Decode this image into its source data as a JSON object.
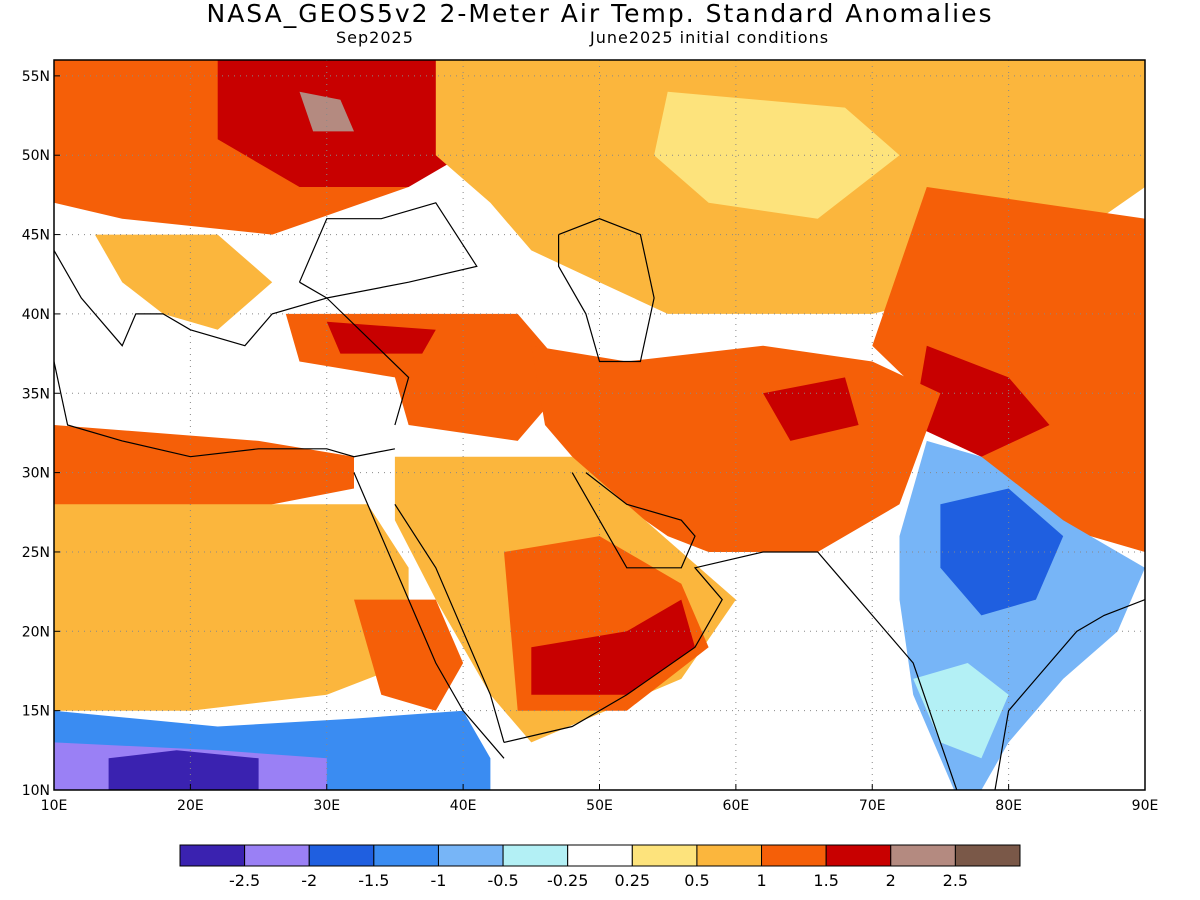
{
  "title": "NASA_GEOS5v2 2-Meter Air Temp. Standard Anomalies",
  "subtitle_left": "Sep2025",
  "subtitle_right": "June2025 initial conditions",
  "map": {
    "lon_range": [
      10,
      90
    ],
    "lat_range": [
      10,
      56
    ],
    "lon_ticks": [
      {
        "value": 10,
        "label": "10E"
      },
      {
        "value": 20,
        "label": "20E"
      },
      {
        "value": 30,
        "label": "30E"
      },
      {
        "value": 40,
        "label": "40E"
      },
      {
        "value": 50,
        "label": "50E"
      },
      {
        "value": 60,
        "label": "60E"
      },
      {
        "value": 70,
        "label": "70E"
      },
      {
        "value": 80,
        "label": "80E"
      },
      {
        "value": 90,
        "label": "90E"
      }
    ],
    "lat_ticks": [
      {
        "value": 10,
        "label": "10N"
      },
      {
        "value": 15,
        "label": "15N"
      },
      {
        "value": 20,
        "label": "20N"
      },
      {
        "value": 25,
        "label": "25N"
      },
      {
        "value": 30,
        "label": "30N"
      },
      {
        "value": 35,
        "label": "35N"
      },
      {
        "value": 40,
        "label": "40N"
      },
      {
        "value": 45,
        "label": "45N"
      },
      {
        "value": 50,
        "label": "50N"
      },
      {
        "value": 55,
        "label": "55N"
      }
    ],
    "gridlines": "dotted"
  },
  "colorbar": {
    "colors": [
      "#3a22b0",
      "#9a80f5",
      "#1f5fe0",
      "#3a8cf2",
      "#77b5f7",
      "#b3f0f5",
      "#ffffff",
      "#fde37c",
      "#fbb63d",
      "#f55f08",
      "#c80000",
      "#b48a80",
      "#7a5848"
    ],
    "labels": [
      "-2.5",
      "-2",
      "-1.5",
      "-1",
      "-0.5",
      "-0.25",
      "0.25",
      "0.5",
      "1",
      "1.5",
      "2",
      "2.5"
    ]
  },
  "regions": [
    {
      "name": "europe-north",
      "color": "#f55f08",
      "lonlat": [
        [
          10,
          56
        ],
        [
          30,
          56
        ],
        [
          36,
          48
        ],
        [
          26,
          45
        ],
        [
          15,
          46
        ],
        [
          10,
          47
        ]
      ]
    },
    {
      "name": "eastern-europe-core",
      "color": "#c80000",
      "lonlat": [
        [
          22,
          56
        ],
        [
          38,
          56
        ],
        [
          42,
          51
        ],
        [
          36,
          48
        ],
        [
          28,
          48
        ],
        [
          22,
          51
        ]
      ]
    },
    {
      "name": "eastern-europe-peak",
      "color": "#b48a80",
      "lonlat": [
        [
          28,
          54
        ],
        [
          31,
          53.5
        ],
        [
          32,
          51.5
        ],
        [
          29,
          51.5
        ]
      ]
    },
    {
      "name": "balkans",
      "color": "#fbb63d",
      "lonlat": [
        [
          13,
          45
        ],
        [
          22,
          45
        ],
        [
          26,
          42
        ],
        [
          22,
          39
        ],
        [
          18,
          40
        ],
        [
          15,
          42
        ]
      ]
    },
    {
      "name": "russia-central",
      "color": "#fbb63d",
      "lonlat": [
        [
          38,
          56
        ],
        [
          90,
          56
        ],
        [
          90,
          48
        ],
        [
          80,
          42
        ],
        [
          70,
          40
        ],
        [
          55,
          40
        ],
        [
          50,
          42
        ],
        [
          45,
          44
        ],
        [
          42,
          47
        ],
        [
          38,
          50
        ]
      ]
    },
    {
      "name": "kazakh-pale",
      "color": "#fde37c",
      "lonlat": [
        [
          55,
          54
        ],
        [
          68,
          53
        ],
        [
          72,
          50
        ],
        [
          66,
          46
        ],
        [
          58,
          47
        ],
        [
          54,
          50
        ]
      ]
    },
    {
      "name": "central-asia-east",
      "color": "#f55f08",
      "lonlat": [
        [
          74,
          48
        ],
        [
          90,
          46
        ],
        [
          90,
          25
        ],
        [
          82,
          27
        ],
        [
          76,
          33
        ],
        [
          70,
          38
        ]
      ]
    },
    {
      "name": "himalaya-core",
      "color": "#c80000",
      "lonlat": [
        [
          74,
          38
        ],
        [
          80,
          36
        ],
        [
          83,
          33
        ],
        [
          78,
          31
        ],
        [
          73,
          33
        ]
      ]
    },
    {
      "name": "turkey-levant",
      "color": "#f55f08",
      "lonlat": [
        [
          27,
          40
        ],
        [
          44,
          40
        ],
        [
          48,
          36
        ],
        [
          44,
          32
        ],
        [
          36,
          33
        ],
        [
          35,
          36
        ],
        [
          28,
          37
        ]
      ]
    },
    {
      "name": "turkey-core",
      "color": "#c80000",
      "lonlat": [
        [
          30,
          39.5
        ],
        [
          38,
          39
        ],
        [
          37,
          37.5
        ],
        [
          31,
          37.5
        ]
      ]
    },
    {
      "name": "iran-afghanistan",
      "color": "#f55f08",
      "lonlat": [
        [
          45,
          38
        ],
        [
          52,
          37
        ],
        [
          62,
          38
        ],
        [
          70,
          37
        ],
        [
          75,
          35
        ],
        [
          72,
          28
        ],
        [
          66,
          25
        ],
        [
          58,
          25
        ],
        [
          55,
          26
        ],
        [
          50,
          29
        ],
        [
          46,
          33
        ]
      ]
    },
    {
      "name": "afghan-core",
      "color": "#c80000",
      "lonlat": [
        [
          62,
          35
        ],
        [
          68,
          36
        ],
        [
          69,
          33
        ],
        [
          64,
          32
        ]
      ]
    },
    {
      "name": "arabia",
      "color": "#fbb63d",
      "lonlat": [
        [
          35,
          31
        ],
        [
          48,
          31
        ],
        [
          56,
          25
        ],
        [
          60,
          22
        ],
        [
          56,
          17
        ],
        [
          45,
          13
        ],
        [
          42,
          16
        ],
        [
          38,
          22
        ],
        [
          35,
          27
        ]
      ]
    },
    {
      "name": "arabia-south",
      "color": "#f55f08",
      "lonlat": [
        [
          43,
          25
        ],
        [
          50,
          26
        ],
        [
          56,
          23
        ],
        [
          58,
          19
        ],
        [
          52,
          15
        ],
        [
          44,
          15
        ]
      ]
    },
    {
      "name": "yemen-oman-core",
      "color": "#c80000",
      "lonlat": [
        [
          45,
          19
        ],
        [
          52,
          20
        ],
        [
          56,
          22
        ],
        [
          57,
          19
        ],
        [
          52,
          16
        ],
        [
          45,
          16
        ]
      ]
    },
    {
      "name": "sahara-north",
      "color": "#f55f08",
      "lonlat": [
        [
          10,
          33
        ],
        [
          25,
          32
        ],
        [
          32,
          31
        ],
        [
          32,
          29
        ],
        [
          20,
          27
        ],
        [
          10,
          27
        ]
      ]
    },
    {
      "name": "sahara",
      "color": "#fbb63d",
      "lonlat": [
        [
          10,
          28
        ],
        [
          33,
          28
        ],
        [
          36,
          24
        ],
        [
          36,
          18
        ],
        [
          30,
          16
        ],
        [
          20,
          15
        ],
        [
          10,
          15
        ]
      ]
    },
    {
      "name": "sudan-east",
      "color": "#f55f08",
      "lonlat": [
        [
          32,
          22
        ],
        [
          38,
          22
        ],
        [
          40,
          18
        ],
        [
          38,
          15
        ],
        [
          34,
          16
        ]
      ]
    },
    {
      "name": "sahel-blue",
      "color": "#3a8cf2",
      "lonlat": [
        [
          10,
          15
        ],
        [
          22,
          14
        ],
        [
          32,
          14.5
        ],
        [
          40,
          15
        ],
        [
          42,
          12
        ],
        [
          42,
          10
        ],
        [
          10,
          10
        ]
      ]
    },
    {
      "name": "sahel-deep",
      "color": "#9a80f5",
      "lonlat": [
        [
          10,
          13
        ],
        [
          22,
          12.5
        ],
        [
          30,
          12
        ],
        [
          30,
          10
        ],
        [
          10,
          10
        ]
      ]
    },
    {
      "name": "sahel-core",
      "color": "#3a22b0",
      "lonlat": [
        [
          14,
          12
        ],
        [
          19,
          12.5
        ],
        [
          25,
          12
        ],
        [
          25,
          10
        ],
        [
          14,
          10
        ]
      ]
    },
    {
      "name": "india-pale",
      "color": "#77b5f7",
      "lonlat": [
        [
          74,
          32
        ],
        [
          78,
          31
        ],
        [
          84,
          27
        ],
        [
          90,
          24
        ],
        [
          88,
          20
        ],
        [
          84,
          17
        ],
        [
          80,
          13
        ],
        [
          78,
          10
        ],
        [
          76,
          10
        ],
        [
          73,
          16
        ],
        [
          72,
          22
        ],
        [
          72,
          26
        ]
      ]
    },
    {
      "name": "india-core",
      "color": "#1f5fe0",
      "lonlat": [
        [
          75,
          28
        ],
        [
          80,
          29
        ],
        [
          84,
          26
        ],
        [
          82,
          22
        ],
        [
          78,
          21
        ],
        [
          75,
          24
        ]
      ]
    },
    {
      "name": "india-cyan",
      "color": "#b3f0f5",
      "lonlat": [
        [
          73,
          17
        ],
        [
          77,
          18
        ],
        [
          80,
          16
        ],
        [
          78,
          12
        ],
        [
          75,
          13
        ]
      ]
    }
  ],
  "coastlines": [
    {
      "name": "mediterranean-north",
      "lonlat": [
        [
          10,
          44
        ],
        [
          12,
          41
        ],
        [
          15,
          38
        ],
        [
          16,
          40
        ],
        [
          18,
          40
        ],
        [
          20,
          39
        ],
        [
          24,
          38
        ],
        [
          26,
          40
        ],
        [
          30,
          41
        ],
        [
          36,
          36
        ],
        [
          35,
          33
        ]
      ]
    },
    {
      "name": "mediterranean-south",
      "lonlat": [
        [
          10,
          37
        ],
        [
          11,
          33
        ],
        [
          15,
          32
        ],
        [
          20,
          31
        ],
        [
          25,
          31.5
        ],
        [
          30,
          31.5
        ],
        [
          32,
          31
        ],
        [
          35,
          31.5
        ]
      ]
    },
    {
      "name": "black-sea",
      "lonlat": [
        [
          28,
          42
        ],
        [
          30,
          46
        ],
        [
          34,
          46
        ],
        [
          38,
          47
        ],
        [
          41,
          43
        ],
        [
          36,
          42
        ],
        [
          30,
          41
        ],
        [
          28,
          42
        ]
      ]
    },
    {
      "name": "caspian",
      "lonlat": [
        [
          47,
          45
        ],
        [
          50,
          46
        ],
        [
          53,
          45
        ],
        [
          54,
          41
        ],
        [
          53,
          37
        ],
        [
          50,
          37
        ],
        [
          49,
          40
        ],
        [
          47,
          43
        ],
        [
          47,
          45
        ]
      ]
    },
    {
      "name": "red-sea-west",
      "lonlat": [
        [
          32,
          30
        ],
        [
          34,
          26
        ],
        [
          36,
          22
        ],
        [
          38,
          18
        ],
        [
          40,
          15
        ],
        [
          43,
          12
        ]
      ]
    },
    {
      "name": "red-sea-east",
      "lonlat": [
        [
          35,
          28
        ],
        [
          38,
          24
        ],
        [
          40,
          20
        ],
        [
          42,
          16
        ],
        [
          43,
          13
        ]
      ]
    },
    {
      "name": "persian-gulf",
      "lonlat": [
        [
          48,
          30
        ],
        [
          50,
          27
        ],
        [
          52,
          24
        ],
        [
          56,
          24
        ],
        [
          57,
          26
        ],
        [
          56,
          27
        ],
        [
          52,
          28
        ],
        [
          49,
          30
        ]
      ]
    },
    {
      "name": "arabian-sea-coast",
      "lonlat": [
        [
          43,
          13
        ],
        [
          48,
          14
        ],
        [
          52,
          16
        ],
        [
          57,
          19
        ],
        [
          59,
          22
        ],
        [
          57,
          24
        ],
        [
          62,
          25
        ],
        [
          66,
          25
        ],
        [
          68,
          23
        ],
        [
          70,
          21
        ],
        [
          73,
          18
        ],
        [
          75,
          13
        ],
        [
          77,
          8
        ]
      ]
    },
    {
      "name": "india-east",
      "lonlat": [
        [
          79,
          10
        ],
        [
          80,
          15
        ],
        [
          82,
          17
        ],
        [
          85,
          20
        ],
        [
          87,
          21
        ],
        [
          90,
          22
        ]
      ]
    }
  ]
}
